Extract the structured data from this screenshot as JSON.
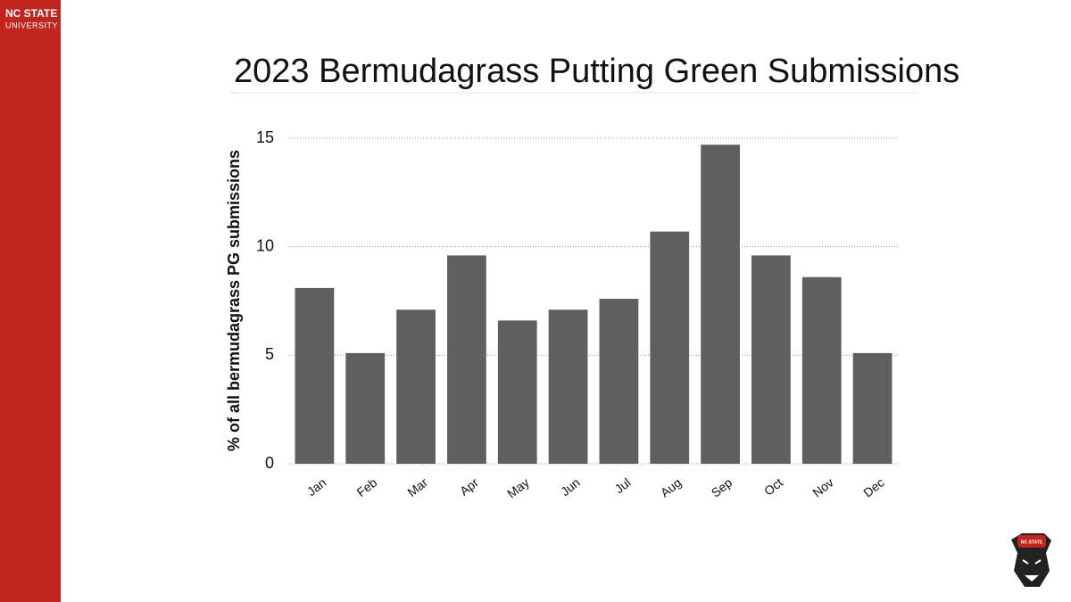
{
  "branding": {
    "name": "NC STATE",
    "subtitle": "UNIVERSITY",
    "badge": "NC STATE"
  },
  "chart_data": {
    "type": "bar",
    "title": "2023 Bermudagrass Putting Green Submissions",
    "y_label": "% of all bermudagrass PG submissions",
    "categories": [
      "Jan",
      "Feb",
      "Mar",
      "Apr",
      "May",
      "Jun",
      "Jul",
      "Aug",
      "Sep",
      "Oct",
      "Nov",
      "Dec"
    ],
    "values": [
      8.1,
      5.1,
      7.1,
      9.6,
      6.6,
      7.1,
      7.6,
      10.7,
      14.7,
      9.6,
      8.6,
      5.1
    ],
    "color": "#5f5f5f",
    "ylim": [
      0,
      15
    ],
    "yticks": [
      0,
      5,
      10,
      15
    ],
    "grid": true
  }
}
